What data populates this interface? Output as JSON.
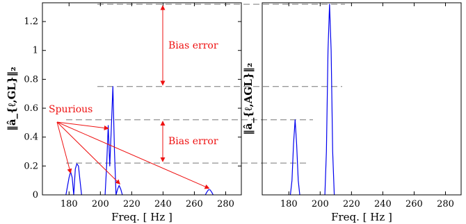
{
  "colors": {
    "series": "#0000ee",
    "annotation": "#ee1111",
    "reference": "#777777"
  },
  "chart_data": [
    {
      "type": "line",
      "panel": "left",
      "title": "",
      "xlabel": "Freq. [ Hz ]",
      "ylabel": "‖â_{ℓ,GL}‖₂",
      "xlim": [
        163,
        290
      ],
      "ylim": [
        0,
        1.33
      ],
      "xticks": [
        180,
        200,
        220,
        240,
        260,
        280
      ],
      "yticks": [
        0,
        0.2,
        0.4,
        0.6,
        0.8,
        1,
        1.2
      ],
      "xtick_labels": [
        "180",
        "200",
        "220",
        "240",
        "260",
        "280"
      ],
      "ytick_labels": [
        "0",
        "0.2",
        "0.4",
        "0.6",
        "0.8",
        "1",
        "1.2"
      ],
      "grid": false,
      "series": [
        {
          "x": [
            178,
            180,
            181,
            182,
            183,
            184,
            185,
            186,
            187,
            188,
            203,
            204,
            205,
            206,
            207,
            208,
            209,
            210,
            211,
            212,
            213,
            214,
            215,
            267,
            268,
            269,
            270,
            271,
            272
          ],
          "y": [
            0,
            0.12,
            0.16,
            0.12,
            0,
            0.18,
            0.215,
            0.2,
            0.1,
            0,
            0,
            0.2,
            0.48,
            0.2,
            0.47,
            0.75,
            0.3,
            0,
            0.04,
            0.065,
            0.04,
            0,
            0,
            0,
            0.02,
            0.035,
            0.035,
            0.02,
            0
          ]
        }
      ],
      "annotations": [
        {
          "text": "Bias error",
          "from_y": 0.75,
          "to_y": 1.32
        },
        {
          "text": "Bias error",
          "from_y": 0.22,
          "to_y": 0.52
        },
        {
          "text": "Spurious"
        }
      ]
    },
    {
      "type": "line",
      "panel": "right",
      "title": "",
      "xlabel": "Freq. [ Hz ]",
      "ylabel": "‖â_{ℓ,AGL}‖₂",
      "xlim": [
        163,
        290
      ],
      "ylim": [
        0,
        1.33
      ],
      "xticks": [
        180,
        200,
        220,
        240,
        260,
        280
      ],
      "xtick_labels": [
        "180",
        "200",
        "220",
        "240",
        "260",
        "280"
      ],
      "grid": false,
      "series": [
        {
          "x": [
            181,
            182,
            183,
            184,
            185,
            186,
            187,
            203,
            204,
            205,
            206,
            207,
            208,
            209
          ],
          "y": [
            0,
            0.1,
            0.35,
            0.52,
            0.35,
            0.1,
            0,
            0,
            0.3,
            1.0,
            1.32,
            1.0,
            0.3,
            0
          ]
        }
      ]
    }
  ]
}
